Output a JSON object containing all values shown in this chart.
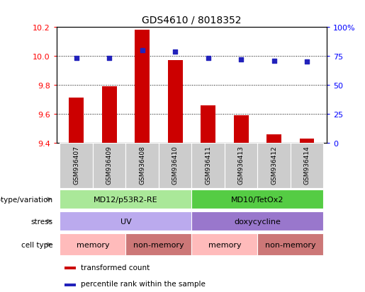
{
  "title": "GDS4610 / 8018352",
  "samples": [
    "GSM936407",
    "GSM936409",
    "GSM936408",
    "GSM936410",
    "GSM936411",
    "GSM936413",
    "GSM936412",
    "GSM936414"
  ],
  "transformed_count": [
    9.71,
    9.79,
    10.18,
    9.97,
    9.66,
    9.59,
    9.46,
    9.43
  ],
  "percentile_rank": [
    73,
    73,
    80,
    79,
    73,
    72,
    71,
    70
  ],
  "ylim_left": [
    9.4,
    10.2
  ],
  "ylim_right": [
    0,
    100
  ],
  "yticks_left": [
    9.4,
    9.6,
    9.8,
    10.0,
    10.2
  ],
  "yticks_right": [
    0,
    25,
    50,
    75,
    100
  ],
  "bar_color": "#cc0000",
  "dot_color": "#2222bb",
  "bar_bottom": 9.4,
  "bar_width": 0.45,
  "genotype_groups": [
    {
      "label": "MD12/p53R2-RE",
      "start": 0,
      "end": 4,
      "color": "#aae899"
    },
    {
      "label": "MD10/TetOx2",
      "start": 4,
      "end": 8,
      "color": "#55cc44"
    }
  ],
  "stress_groups": [
    {
      "label": "UV",
      "start": 0,
      "end": 4,
      "color": "#bbaaee"
    },
    {
      "label": "doxycycline",
      "start": 4,
      "end": 8,
      "color": "#9977cc"
    }
  ],
  "cell_type_groups": [
    {
      "label": "memory",
      "start": 0,
      "end": 2,
      "color": "#ffbbbb"
    },
    {
      "label": "non-memory",
      "start": 2,
      "end": 4,
      "color": "#cc7777"
    },
    {
      "label": "memory",
      "start": 4,
      "end": 6,
      "color": "#ffbbbb"
    },
    {
      "label": "non-memory",
      "start": 6,
      "end": 8,
      "color": "#cc7777"
    }
  ],
  "row_labels": [
    "genotype/variation",
    "stress",
    "cell type"
  ],
  "legend_bar_label": "transformed count",
  "legend_dot_label": "percentile rank within the sample",
  "sample_bg_color": "#cccccc",
  "sample_border_color": "#ffffff"
}
